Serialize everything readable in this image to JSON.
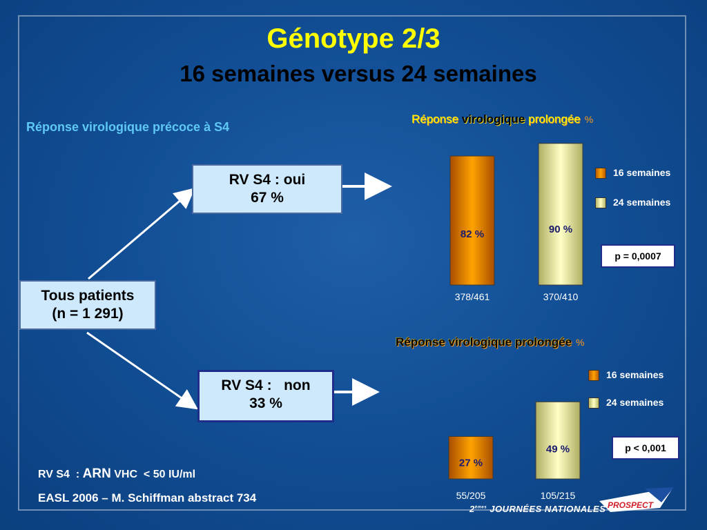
{
  "title": "Génotype 2/3",
  "subtitle": "16 semaines versus 24 semaines",
  "left_heading": "Réponse virologique précoce à S4",
  "boxes": {
    "oui": {
      "line1": "RV S4 : oui",
      "line2": "67 %"
    },
    "non": {
      "line1": "RV S4 :   non",
      "line2": "33 %"
    },
    "all": {
      "line1": "Tous patients",
      "line2": "(n = 1 291)"
    }
  },
  "footer": {
    "def_prefix": "RV S4  : ",
    "def_arn": "ARN",
    "def_vhc": " VHC",
    "def_rest": "  < 50 IU/ml",
    "ref": "EASL 2006 – M. Schiffman abstract 734"
  },
  "brand": {
    "prefix": "2",
    "sup": "èmes",
    "name": "JOURNÉES NATIONALES",
    "logo": "PROSPECT"
  },
  "colors": {
    "title": "#ffff00",
    "heading": "#5fc8f5",
    "orange": "#ffa200",
    "yellow": "#ffffc2"
  },
  "chart_data": [
    {
      "type": "bar",
      "title_parts": [
        "Réponse ",
        "virologique",
        " prolongée"
      ],
      "unit": "%",
      "categories": [
        "378/461",
        "370/410"
      ],
      "series": [
        {
          "name": "16 semaines",
          "values": [
            82,
            null
          ]
        },
        {
          "name": "24 semaines",
          "values": [
            null,
            90
          ]
        }
      ],
      "bars": [
        {
          "label": "82 %",
          "value": 82,
          "category": "378/461",
          "series": "16 semaines"
        },
        {
          "label": "90 %",
          "value": 90,
          "category": "370/410",
          "series": "24 semaines"
        }
      ],
      "ylim": [
        0,
        100
      ],
      "legend": [
        "16 semaines",
        "24 semaines"
      ],
      "legend_position": "right",
      "annotation": "p = 0,0007",
      "grid": false
    },
    {
      "type": "bar",
      "title": "Réponse virologique prolongée",
      "unit": "%",
      "categories": [
        "55/205",
        "105/215"
      ],
      "series": [
        {
          "name": "16 semaines",
          "values": [
            27,
            null
          ]
        },
        {
          "name": "24 semaines",
          "values": [
            null,
            49
          ]
        }
      ],
      "bars": [
        {
          "label": "27 %",
          "value": 27,
          "category": "55/205",
          "series": "16 semaines"
        },
        {
          "label": "49 %",
          "value": 49,
          "category": "105/215",
          "series": "24 semaines"
        }
      ],
      "ylim": [
        0,
        100
      ],
      "legend": [
        "16 semaines",
        "24 semaines"
      ],
      "legend_position": "right",
      "annotation": "p < 0,001",
      "grid": false
    }
  ]
}
